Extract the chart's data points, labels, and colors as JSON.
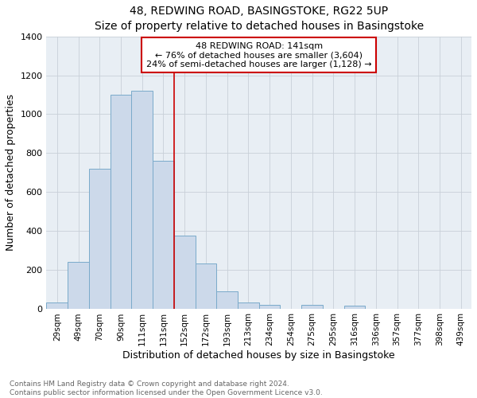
{
  "title": "48, REDWING ROAD, BASINGSTOKE, RG22 5UP",
  "subtitle": "Size of property relative to detached houses in Basingstoke",
  "xlabel": "Distribution of detached houses by size in Basingstoke",
  "ylabel": "Number of detached properties",
  "categories": [
    "29sqm",
    "49sqm",
    "70sqm",
    "90sqm",
    "111sqm",
    "131sqm",
    "152sqm",
    "172sqm",
    "193sqm",
    "213sqm",
    "234sqm",
    "254sqm",
    "275sqm",
    "295sqm",
    "316sqm",
    "336sqm",
    "357sqm",
    "377sqm",
    "398sqm",
    "439sqm"
  ],
  "values": [
    30,
    240,
    720,
    1100,
    1120,
    760,
    375,
    230,
    90,
    30,
    20,
    0,
    20,
    0,
    15,
    0,
    0,
    0,
    0,
    0
  ],
  "bar_color": "#ccd9ea",
  "bar_edge_color": "#7aaaca",
  "red_line_label": "48 REDWING ROAD: 141sqm",
  "annotation_line1": "← 76% of detached houses are smaller (3,604)",
  "annotation_line2": "24% of semi-detached houses are larger (1,128) →",
  "annotation_box_color": "#ffffff",
  "annotation_box_edge_color": "#cc0000",
  "ylim": [
    0,
    1400
  ],
  "yticks": [
    0,
    200,
    400,
    600,
    800,
    1000,
    1200,
    1400
  ],
  "footnote1": "Contains HM Land Registry data © Crown copyright and database right 2024.",
  "footnote2": "Contains public sector information licensed under the Open Government Licence v3.0.",
  "title_fontsize": 10,
  "label_fontsize": 9,
  "tick_fontsize": 8,
  "annot_fontsize": 8,
  "background_color": "#ffffff",
  "plot_bg_color": "#e8eef4",
  "grid_color": "#c8d0d8"
}
